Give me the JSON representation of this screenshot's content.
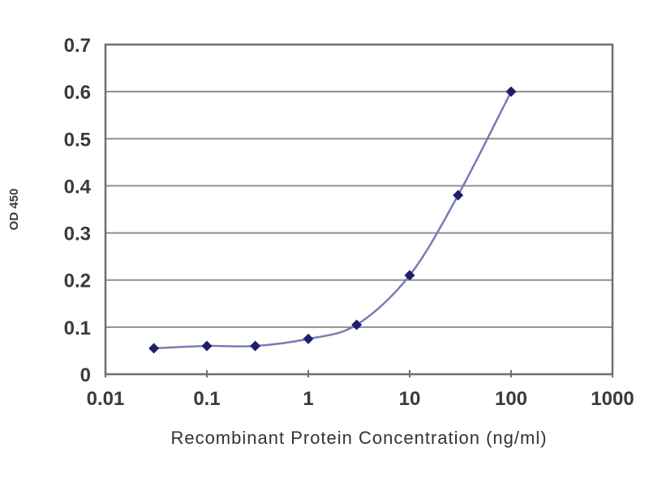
{
  "page": {
    "background": "#ffffff",
    "description": "ELISA standard curve line chart"
  },
  "colors": {
    "line": "#7b7bb2",
    "marker": "#1e1e6e",
    "grid": "#8f8f8f",
    "frame": "#6f6f6f",
    "label": "#3a3a3a",
    "background": "#ffffff"
  },
  "chart_data": {
    "type": "line",
    "title": "",
    "xlabel": "Recombinant Protein Concentration (ng/ml)",
    "ylabel": "OD 450",
    "x_scale": "log",
    "y_scale": "linear",
    "xlim": [
      0.01,
      1000
    ],
    "ylim": [
      0,
      0.7
    ],
    "x_ticks": [
      "0.01",
      "0.1",
      "1",
      "10",
      "100",
      "1000"
    ],
    "x_tick_values": [
      0.01,
      0.1,
      1,
      10,
      100,
      1000
    ],
    "y_ticks": [
      "0",
      "0.1",
      "0.2",
      "0.3",
      "0.4",
      "0.5",
      "0.6",
      "0.7"
    ],
    "y_tick_values": [
      0,
      0.1,
      0.2,
      0.3,
      0.4,
      0.5,
      0.6,
      0.7
    ],
    "grid": "horizontal",
    "legend": "none",
    "series": [
      {
        "name": "OD 450",
        "marker": "diamond",
        "smooth": true,
        "x": [
          0.03,
          0.1,
          0.3,
          1,
          3,
          10,
          30,
          100
        ],
        "y": [
          0.055,
          0.06,
          0.06,
          0.075,
          0.105,
          0.21,
          0.38,
          0.6
        ]
      }
    ]
  }
}
